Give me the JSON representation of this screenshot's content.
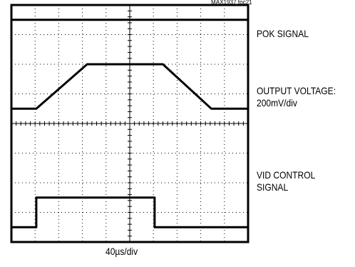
{
  "chart_data": {
    "type": "line",
    "figure_id": "MAX1937 toc21",
    "x_scale_label": "40µs/div",
    "grid": true,
    "divisions": {
      "horizontal": 10,
      "vertical": 8
    },
    "channel_labels": [
      "POK SIGNAL",
      "OUTPUT VOLTAGE:\n200mV/div",
      "VID CONTROL\nSIGNAL"
    ],
    "series": [
      {
        "name": "POK SIGNAL",
        "x_div": [
          0,
          10
        ],
        "y_div": [
          7.5,
          7.5
        ]
      },
      {
        "name": "OUTPUT VOLTAGE",
        "x_div": [
          0,
          1.05,
          3.2,
          6.4,
          8.45,
          10
        ],
        "y_div": [
          4.5,
          4.5,
          6.0,
          6.0,
          4.5,
          4.5
        ]
      },
      {
        "name": "VID CONTROL",
        "x_div": [
          0,
          1.05,
          1.05,
          6.05,
          6.05,
          10
        ],
        "y_div": [
          0.5,
          0.5,
          1.5,
          1.5,
          0.5,
          0.5
        ]
      }
    ]
  }
}
